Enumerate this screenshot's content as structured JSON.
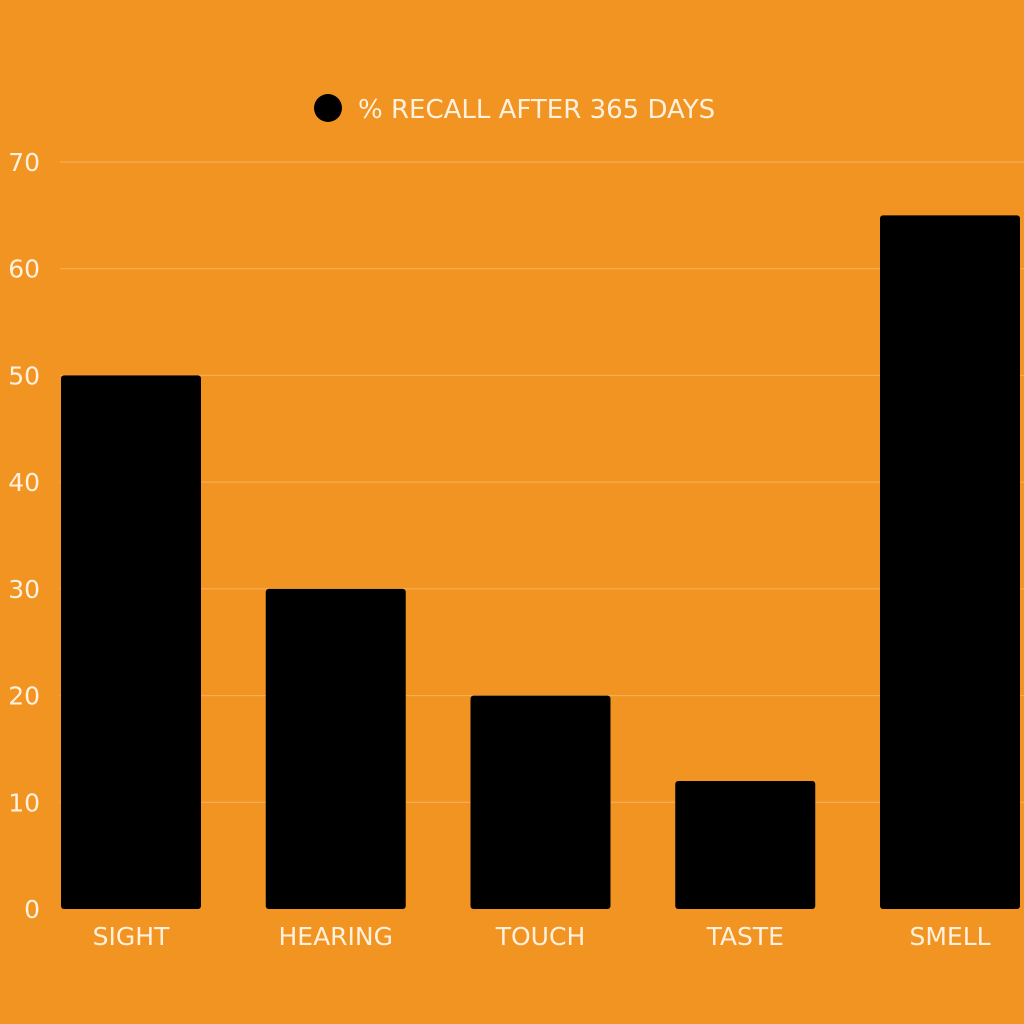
{
  "colors": {
    "background": "#F29422",
    "bar": "#000000",
    "gridline": "#F6B25E",
    "text": "#FFF1DE",
    "legend_marker": "#000000"
  },
  "chart_data": {
    "type": "bar",
    "categories": [
      "SIGHT",
      "HEARING",
      "TOUCH",
      "TASTE",
      "SMELL"
    ],
    "series": [
      {
        "name": "% RECALL AFTER 365 DAYS",
        "values": [
          50,
          30,
          20,
          12,
          65
        ]
      }
    ],
    "ylim": [
      0,
      70
    ],
    "yticks": [
      0,
      10,
      20,
      30,
      40,
      50,
      60,
      70
    ],
    "grid": true,
    "legend_position": "top-center"
  }
}
